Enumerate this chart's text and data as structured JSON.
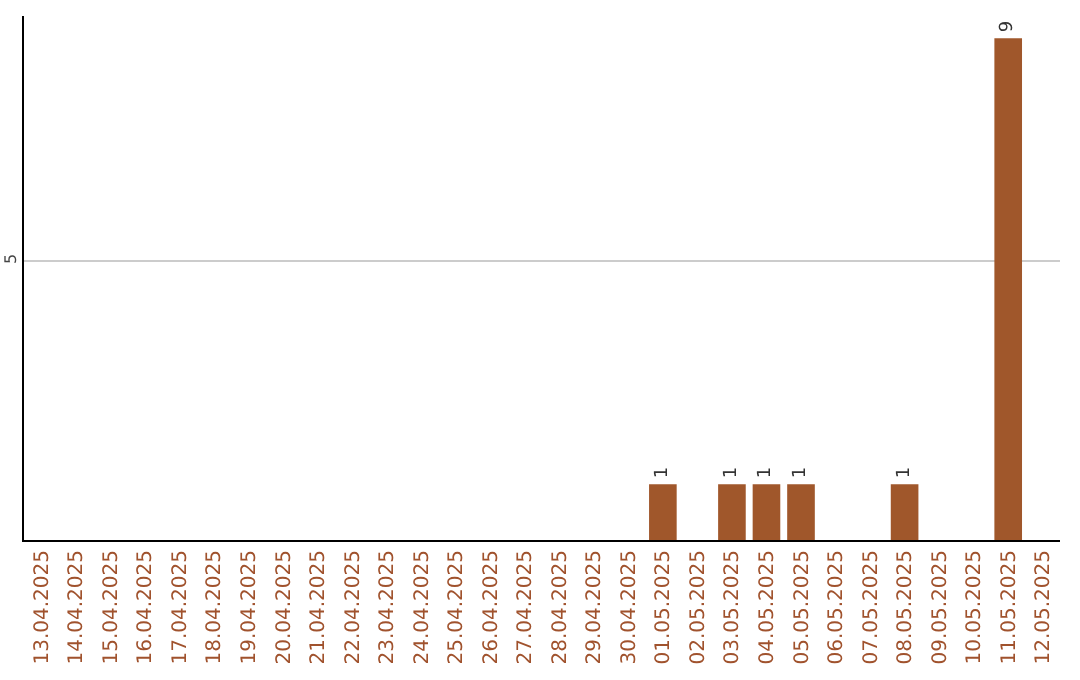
{
  "chart_data": {
    "type": "bar",
    "categories": [
      "13.04.2025",
      "14.04.2025",
      "15.04.2025",
      "16.04.2025",
      "17.04.2025",
      "18.04.2025",
      "19.04.2025",
      "20.04.2025",
      "21.04.2025",
      "22.04.2025",
      "23.04.2025",
      "24.04.2025",
      "25.04.2025",
      "26.04.2025",
      "27.04.2025",
      "28.04.2025",
      "29.04.2025",
      "30.04.2025",
      "01.05.2025",
      "02.05.2025",
      "03.05.2025",
      "04.05.2025",
      "05.05.2025",
      "06.05.2025",
      "07.05.2025",
      "08.05.2025",
      "09.05.2025",
      "10.05.2025",
      "11.05.2025",
      "12.05.2025"
    ],
    "values": [
      null,
      null,
      null,
      null,
      null,
      null,
      null,
      null,
      null,
      null,
      null,
      null,
      null,
      null,
      null,
      null,
      null,
      null,
      1,
      null,
      1,
      1,
      1,
      null,
      null,
      1,
      null,
      null,
      9,
      null
    ],
    "data_labels": true,
    "color": "#a0572b",
    "ylim": [
      0,
      9.4
    ],
    "yticks": [
      5
    ],
    "grid": "y"
  }
}
